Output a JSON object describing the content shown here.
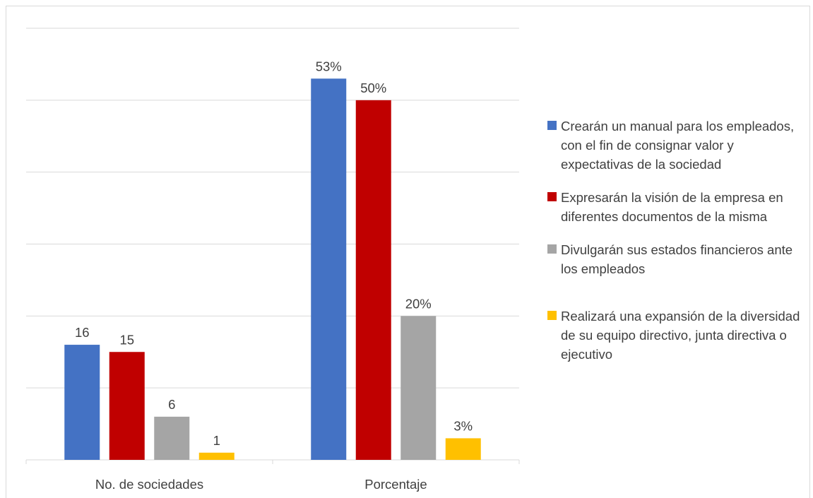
{
  "chart_data": {
    "type": "bar",
    "categories": [
      "No. de sociedades",
      "Porcentaje"
    ],
    "series": [
      {
        "name": "Crearán un manual para los empleados, con el fin de consignar valor y expectativas de la sociedad",
        "color": "#4472C4",
        "values": [
          16,
          53
        ],
        "labels": [
          "16",
          "53%"
        ]
      },
      {
        "name": "Expresarán la visión de la empresa en diferentes documentos de la misma",
        "color": "#C00000",
        "values": [
          15,
          50
        ],
        "labels": [
          "15",
          "50%"
        ]
      },
      {
        "name": "Divulgarán sus estados financieros ante los empleados",
        "color": "#A5A5A5",
        "values": [
          6,
          20
        ],
        "labels": [
          "6",
          "20%"
        ]
      },
      {
        "name": "Realizará una expansión de la diversidad de su equipo directivo, junta directiva o ejecutivo",
        "color": "#FFC000",
        "values": [
          1,
          3
        ],
        "labels": [
          "1",
          "3%"
        ]
      }
    ],
    "ylim": [
      0,
      60
    ],
    "grid": true,
    "legend_position": "right",
    "title": "",
    "xlabel": "",
    "ylabel": ""
  }
}
